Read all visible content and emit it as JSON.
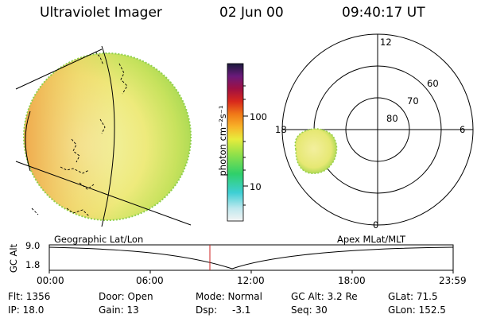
{
  "header": {
    "instrument": "Ultraviolet Imager",
    "date": "02 Jun 00",
    "time": "09:40:17 UT"
  },
  "colorbar": {
    "unit_label": "photon cm⁻²s⁻¹",
    "ticks": [
      "100",
      "10"
    ]
  },
  "polar_plot": {
    "mlt_labels": [
      "12",
      "6",
      "0",
      "18"
    ],
    "lat_labels": [
      "60",
      "70",
      "80"
    ]
  },
  "timeline": {
    "left_label": "Geographic Lat/Lon",
    "right_label": "Apex MLat/MLT",
    "axis_label": "GC Alt",
    "y_ticks": [
      "9.0",
      "1.8"
    ],
    "x_ticks": [
      "00:00",
      "06:00",
      "12:00",
      "18:00",
      "23:59"
    ]
  },
  "status": {
    "flt": "Flt: 1356",
    "ip": "IP: 18.0",
    "door": "Door: Open",
    "gain": "Gain: 13",
    "mode": "Mode: Normal",
    "dsp_label": "Dsp:",
    "dsp_value": "-3.1",
    "gc_alt": "GC Alt: 3.2 Re",
    "seq": "Seq: 30",
    "glat": "GLat: 71.5",
    "glon": "GLon: 152.5"
  },
  "colors": {
    "disk_base": "#f2ee8a",
    "disk_edge": "#b8df55",
    "disk_warm": "#f2b24a",
    "marker": "#cc2222"
  }
}
